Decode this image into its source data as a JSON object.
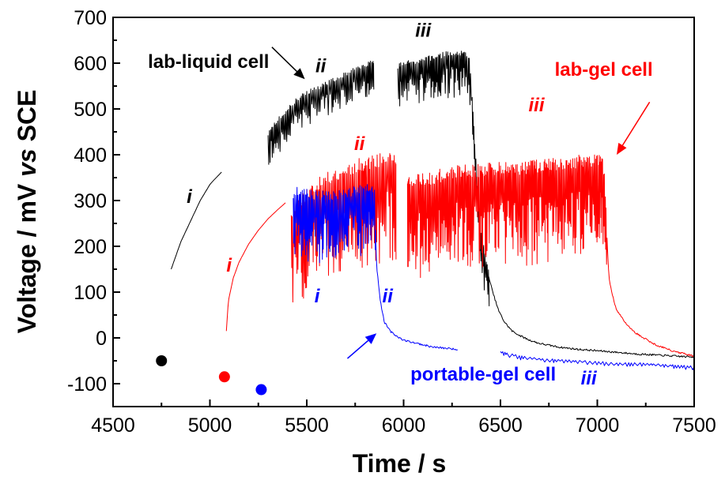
{
  "chart_data": {
    "type": "line",
    "title": "",
    "xlabel": "Time  /  s",
    "ylabel_parts": [
      "Voltage  /  mV ",
      "vs",
      " SCE"
    ],
    "xlim": [
      4500,
      7500
    ],
    "ylim": [
      -150,
      700
    ],
    "x_ticks": [
      4500,
      5000,
      5500,
      6000,
      6500,
      7000,
      7500
    ],
    "y_ticks": [
      -100,
      0,
      100,
      200,
      300,
      400,
      500,
      600,
      700
    ],
    "grid": false,
    "legend": "none",
    "series": [
      {
        "name": "lab-liquid cell",
        "color": "#000000",
        "segments": [
          {
            "trend": [
              [
                4800,
                150
              ],
              [
                4850,
                210
              ],
              [
                4900,
                255
              ],
              [
                4950,
                300
              ],
              [
                5000,
                335
              ],
              [
                5010,
                340
              ],
              [
                5060,
                362
              ]
            ],
            "amp": 0
          },
          {
            "trend": [
              [
                5300,
                440
              ],
              [
                5350,
                470
              ],
              [
                5400,
                495
              ],
              [
                5450,
                515
              ],
              [
                5500,
                530
              ],
              [
                5550,
                540
              ],
              [
                5600,
                550
              ],
              [
                5650,
                560
              ],
              [
                5700,
                570
              ],
              [
                5750,
                580
              ],
              [
                5800,
                590
              ],
              [
                5845,
                600
              ]
            ],
            "amp": 70,
            "period": 7,
            "seed": 3
          },
          {
            "trend": [
              [
                5970,
                585
              ],
              [
                6000,
                590
              ],
              [
                6050,
                595
              ],
              [
                6100,
                600
              ],
              [
                6150,
                605
              ],
              [
                6200,
                610
              ],
              [
                6250,
                615
              ],
              [
                6300,
                615
              ],
              [
                6340,
                610
              ],
              [
                6370,
                400
              ],
              [
                6400,
                220
              ],
              [
                6430,
                150
              ],
              [
                6460,
                100
              ],
              [
                6490,
                60
              ],
              [
                6520,
                35
              ],
              [
                6560,
                15
              ],
              [
                6600,
                5
              ],
              [
                6650,
                -5
              ],
              [
                6700,
                -12
              ],
              [
                6800,
                -20
              ],
              [
                6900,
                -25
              ],
              [
                7000,
                -28
              ],
              [
                7200,
                -35
              ],
              [
                7500,
                -42
              ]
            ],
            "amp": 90,
            "period": 6,
            "seed": 7,
            "noise_end": 6440
          }
        ]
      },
      {
        "name": "lab-gel cell",
        "color": "#ff0000",
        "segments": [
          {
            "trend": [
              [
                5085,
                15
              ],
              [
                5095,
                80
              ],
              [
                5120,
                130
              ],
              [
                5150,
                165
              ],
              [
                5200,
                205
              ],
              [
                5250,
                235
              ],
              [
                5300,
                260
              ],
              [
                5350,
                280
              ],
              [
                5390,
                295
              ]
            ],
            "amp": 0
          },
          {
            "trend": [
              [
                5420,
                260
              ],
              [
                5500,
                300
              ],
              [
                5600,
                330
              ],
              [
                5700,
                350
              ],
              [
                5800,
                365
              ],
              [
                5900,
                375
              ],
              [
                5960,
                380
              ]
            ],
            "amp": 210,
            "period": 6,
            "seed": 11
          },
          {
            "trend": [
              [
                6020,
                330
              ],
              [
                6100,
                330
              ],
              [
                6200,
                340
              ],
              [
                6300,
                350
              ],
              [
                6400,
                350
              ],
              [
                6500,
                355
              ],
              [
                6600,
                355
              ],
              [
                6700,
                360
              ],
              [
                6800,
                365
              ],
              [
                6900,
                370
              ],
              [
                7000,
                375
              ],
              [
                7020,
                370
              ],
              [
                7035,
                350
              ],
              [
                7060,
                130
              ],
              [
                7080,
                90
              ],
              [
                7100,
                60
              ],
              [
                7150,
                30
              ],
              [
                7200,
                10
              ],
              [
                7300,
                -15
              ],
              [
                7400,
                -30
              ],
              [
                7500,
                -40
              ]
            ],
            "amp": 200,
            "period": 5,
            "seed": 19,
            "noise_end": 7050
          }
        ]
      },
      {
        "name": "portable-gel cell",
        "color": "#0000ff",
        "segments": [
          {
            "trend": [
              [
                5430,
                300
              ],
              [
                5450,
                310
              ],
              [
                5500,
                305
              ],
              [
                5550,
                300
              ],
              [
                5600,
                300
              ],
              [
                5650,
                300
              ],
              [
                5700,
                305
              ],
              [
                5750,
                310
              ],
              [
                5800,
                315
              ],
              [
                5830,
                320
              ],
              [
                5850,
                310
              ],
              [
                5860,
                160
              ],
              [
                5880,
                80
              ],
              [
                5900,
                35
              ],
              [
                5930,
                15
              ],
              [
                5960,
                5
              ],
              [
                6000,
                -5
              ],
              [
                6050,
                -10
              ],
              [
                6100,
                -15
              ],
              [
                6150,
                -20
              ],
              [
                6200,
                -22
              ],
              [
                6280,
                -25
              ]
            ],
            "amp": 140,
            "period": 6,
            "seed": 23,
            "noise_end": 5855
          },
          {
            "trend": [
              [
                6500,
                -30
              ],
              [
                6600,
                -40
              ],
              [
                6700,
                -45
              ],
              [
                6800,
                -48
              ],
              [
                6900,
                -50
              ],
              [
                7000,
                -52
              ],
              [
                7100,
                -55
              ],
              [
                7200,
                -55
              ],
              [
                7300,
                -57
              ],
              [
                7400,
                -60
              ],
              [
                7500,
                -62
              ]
            ],
            "amp": 8,
            "period": 20,
            "seed": 31
          }
        ]
      }
    ],
    "markers": [
      {
        "x": 4750,
        "y": -50,
        "color": "#000000"
      },
      {
        "x": 5075,
        "y": -85,
        "color": "#ff0000"
      },
      {
        "x": 5265,
        "y": -113,
        "color": "#0000ff"
      }
    ],
    "annotations": [
      {
        "text": "lab-liquid cell",
        "x": 4680,
        "y": 590,
        "color": "#000000",
        "roman": false
      },
      {
        "text": "lab-gel cell",
        "x": 6780,
        "y": 572,
        "color": "#ff0000",
        "roman": false
      },
      {
        "text": "portable-gel cell",
        "x": 6035,
        "y": -93,
        "color": "#0000ff",
        "roman": false
      },
      {
        "text": "i",
        "x": 4880,
        "y": 295,
        "color": "#000000",
        "roman": true
      },
      {
        "text": "ii",
        "x": 5545,
        "y": 580,
        "color": "#000000",
        "roman": true
      },
      {
        "text": "iii",
        "x": 6060,
        "y": 658,
        "color": "#000000",
        "roman": true
      },
      {
        "text": "i",
        "x": 5085,
        "y": 145,
        "color": "#ff0000",
        "roman": true
      },
      {
        "text": "ii",
        "x": 5745,
        "y": 410,
        "color": "#ff0000",
        "roman": true
      },
      {
        "text": "iii",
        "x": 6645,
        "y": 495,
        "color": "#ff0000",
        "roman": true
      },
      {
        "text": "i",
        "x": 5540,
        "y": 78,
        "color": "#0000ff",
        "roman": true
      },
      {
        "text": "ii",
        "x": 5890,
        "y": 78,
        "color": "#0000ff",
        "roman": true
      },
      {
        "text": "iii",
        "x": 6915,
        "y": -102,
        "color": "#0000ff",
        "roman": true
      }
    ],
    "arrows": [
      {
        "from": [
          5320,
          635
        ],
        "to": [
          5490,
          565
        ],
        "color": "#000000"
      },
      {
        "from": [
          7270,
          515
        ],
        "to": [
          7100,
          400
        ],
        "color": "#ff0000"
      },
      {
        "from": [
          5710,
          -45
        ],
        "to": [
          5860,
          10
        ],
        "color": "#0000ff"
      }
    ]
  }
}
